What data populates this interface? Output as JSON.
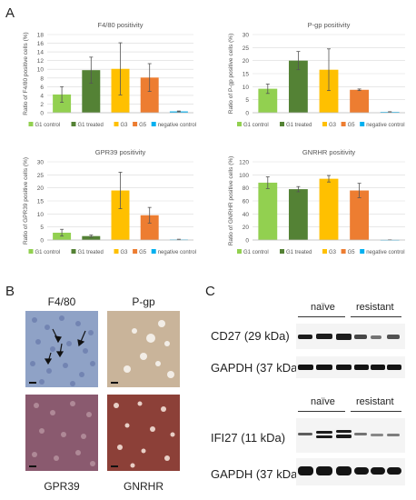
{
  "panels": {
    "a": "A",
    "b": "B",
    "c": "C"
  },
  "legend_labels": [
    "G1 control",
    "G1 treated",
    "G3",
    "G5",
    "negative control"
  ],
  "colors": {
    "G1 control": "#92d050",
    "G1 treated": "#548235",
    "G3": "#ffc000",
    "G5": "#ed7d31",
    "negative control": "#00b0f0"
  },
  "chart_data": [
    {
      "type": "bar",
      "title": "F4/80 positivity",
      "ylabel": "Ratio of F4/80 positive cells (%)",
      "categories": [
        "G1 control",
        "G1 treated",
        "G3",
        "G5",
        "negative control"
      ],
      "values": [
        4.2,
        9.8,
        10.1,
        8.1,
        0.3
      ],
      "errors": [
        1.8,
        3.0,
        6.0,
        3.2,
        0.1
      ],
      "ylim": [
        0,
        18
      ],
      "ticks": [
        0,
        2,
        4,
        6,
        8,
        10,
        12,
        14,
        16,
        18
      ],
      "grid": true,
      "legend": "bottom"
    },
    {
      "type": "bar",
      "title": "P-gp positivity",
      "ylabel": "Ratio of P-gp positive cells (%)",
      "categories": [
        "G1 control",
        "G1 treated",
        "G3",
        "G5",
        "negative control"
      ],
      "values": [
        9.2,
        20.0,
        16.5,
        8.8,
        0.3
      ],
      "errors": [
        1.8,
        3.5,
        8.0,
        0.3,
        0.1
      ],
      "ylim": [
        0,
        30
      ],
      "ticks": [
        0,
        5,
        10,
        15,
        20,
        25,
        30
      ],
      "grid": true,
      "legend": "bottom"
    },
    {
      "type": "bar",
      "title": "GPR39 positivity",
      "ylabel": "Ratio of GPR39 positive cells (%)",
      "categories": [
        "G1 control",
        "G1 treated",
        "G3",
        "G5",
        "negative control"
      ],
      "values": [
        2.8,
        1.5,
        19.0,
        9.5,
        0.2
      ],
      "errors": [
        1.3,
        0.4,
        7.0,
        3.0,
        0.1
      ],
      "ylim": [
        0,
        30
      ],
      "ticks": [
        0,
        5,
        10,
        15,
        20,
        25,
        30
      ],
      "grid": true,
      "legend": "bottom"
    },
    {
      "type": "bar",
      "title": "GNRHR positivity",
      "ylabel": "Ratio of GNRHR positive cells (%)",
      "categories": [
        "G1 control",
        "G1 treated",
        "G3",
        "G5",
        "negative control"
      ],
      "values": [
        88,
        78,
        94,
        76,
        0.3
      ],
      "errors": [
        9,
        4,
        5,
        11,
        0.1
      ],
      "ylim": [
        0,
        120
      ],
      "ticks": [
        0,
        20,
        40,
        60,
        80,
        100,
        120
      ],
      "grid": true,
      "legend": "bottom"
    }
  ],
  "micrographs": {
    "f480": {
      "label": "F4/80",
      "bg": "#8fa2c6"
    },
    "pgp": {
      "label": "P-gp",
      "bg": "#c9b49a"
    },
    "gpr39": {
      "label": "GPR39",
      "bg": "#8a5a6f"
    },
    "gnrhr": {
      "label": "GNRHR",
      "bg": "#8c4038"
    }
  },
  "blots": {
    "naive_label": "naïve",
    "resistant_label": "resistant",
    "cd27_label": "CD27 (29 kDa)",
    "gapdh_label": "GAPDH (37 kDa)",
    "ifi27_label": "IFI27 (11 kDa)"
  }
}
